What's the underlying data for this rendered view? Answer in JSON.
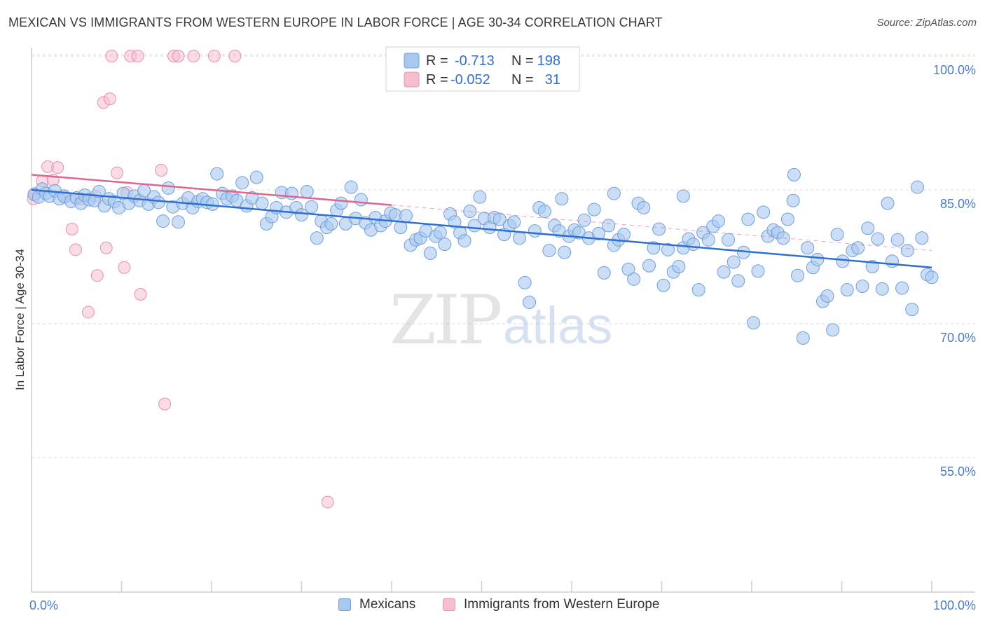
{
  "header": {
    "title": "MEXICAN VS IMMIGRANTS FROM WESTERN EUROPE IN LABOR FORCE | AGE 30-34 CORRELATION CHART",
    "source": "Source: ZipAtlas.com"
  },
  "watermark": {
    "zip": "ZIP",
    "atlas": "atlas"
  },
  "colors": {
    "blue_fill": "#a9c8f0",
    "blue_stroke": "#6d9fdb",
    "blue_line": "#2f6fd0",
    "pink_fill": "#f6bfd0",
    "pink_stroke": "#e990ab",
    "pink_line": "#e06690",
    "grid": "#d9d9d9",
    "axis_text": "#4a7cc7"
  },
  "legend_top": {
    "rows": [
      {
        "r_label": "R =",
        "r_value": "-0.713",
        "n_label": "N =",
        "n_value": "198",
        "series": "blue"
      },
      {
        "r_label": "R =",
        "r_value": "-0.052",
        "n_label": "N =",
        "n_value": "31",
        "series": "pink"
      }
    ]
  },
  "legend_bottom": [
    {
      "label": "Mexicans",
      "series": "blue"
    },
    {
      "label": "Immigrants from Western Europe",
      "series": "pink"
    }
  ],
  "chart_data": {
    "type": "scatter",
    "title": "MEXICAN VS IMMIGRANTS FROM WESTERN EUROPE IN LABOR FORCE | AGE 30-34 CORRELATION CHART",
    "xlabel": "",
    "ylabel": "In Labor Force | Age 30-34",
    "xlim": [
      0,
      100
    ],
    "ylim": [
      40,
      102
    ],
    "x_tick_labels": [
      "0.0%",
      "100.0%"
    ],
    "y_ticks": [
      55,
      70,
      85,
      100
    ],
    "y_tick_labels": [
      "55.0%",
      "70.0%",
      "85.0%",
      "100.0%"
    ],
    "grid": true,
    "legend_position": "top-center",
    "series": [
      {
        "name": "Mexicans",
        "r": -0.713,
        "n": 198,
        "trend": {
          "x": [
            0,
            100
          ],
          "y": [
            85.0,
            76.3
          ]
        },
        "points": [
          [
            0.3,
            84.5
          ],
          [
            0.8,
            84.2
          ],
          [
            1.2,
            85.1
          ],
          [
            1.6,
            84.6
          ],
          [
            2.0,
            84.3
          ],
          [
            2.6,
            84.9
          ],
          [
            3.1,
            84.0
          ],
          [
            3.6,
            84.3
          ],
          [
            4.4,
            83.7
          ],
          [
            5.0,
            84.1
          ],
          [
            5.5,
            83.5
          ],
          [
            5.9,
            84.4
          ],
          [
            6.4,
            83.9
          ],
          [
            7.0,
            83.8
          ],
          [
            7.5,
            84.8
          ],
          [
            8.1,
            83.2
          ],
          [
            8.6,
            84.0
          ],
          [
            9.2,
            83.7
          ],
          [
            9.7,
            83.0
          ],
          [
            10.2,
            84.6
          ],
          [
            10.8,
            83.5
          ],
          [
            11.4,
            84.3
          ],
          [
            12.0,
            83.8
          ],
          [
            12.5,
            84.9
          ],
          [
            13.0,
            83.4
          ],
          [
            13.6,
            84.2
          ],
          [
            14.1,
            83.6
          ],
          [
            14.6,
            81.5
          ],
          [
            15.2,
            85.2
          ],
          [
            15.7,
            83.1
          ],
          [
            16.3,
            81.4
          ],
          [
            16.8,
            83.5
          ],
          [
            17.4,
            84.1
          ],
          [
            17.9,
            83.0
          ],
          [
            18.5,
            83.7
          ],
          [
            19.0,
            84.0
          ],
          [
            19.5,
            83.6
          ],
          [
            20.1,
            83.4
          ],
          [
            20.6,
            86.8
          ],
          [
            21.2,
            84.6
          ],
          [
            21.7,
            84.0
          ],
          [
            22.3,
            84.3
          ],
          [
            22.8,
            83.8
          ],
          [
            23.4,
            85.8
          ],
          [
            23.9,
            83.2
          ],
          [
            24.5,
            84.1
          ],
          [
            25.0,
            86.4
          ],
          [
            25.6,
            83.5
          ],
          [
            26.1,
            81.2
          ],
          [
            26.7,
            82.0
          ],
          [
            27.2,
            83.0
          ],
          [
            27.8,
            84.7
          ],
          [
            28.3,
            82.5
          ],
          [
            28.9,
            84.6
          ],
          [
            29.4,
            83.0
          ],
          [
            30.0,
            82.2
          ],
          [
            30.6,
            84.8
          ],
          [
            31.1,
            83.1
          ],
          [
            31.7,
            79.6
          ],
          [
            32.2,
            81.5
          ],
          [
            32.8,
            80.8
          ],
          [
            33.3,
            81.2
          ],
          [
            33.9,
            82.7
          ],
          [
            34.4,
            83.5
          ],
          [
            34.9,
            81.2
          ],
          [
            35.5,
            85.3
          ],
          [
            36.0,
            81.8
          ],
          [
            36.6,
            83.9
          ],
          [
            37.1,
            81.3
          ],
          [
            37.7,
            80.5
          ],
          [
            38.2,
            81.9
          ],
          [
            38.8,
            81.0
          ],
          [
            39.3,
            81.5
          ],
          [
            39.9,
            82.4
          ],
          [
            40.4,
            82.2
          ],
          [
            41.0,
            80.8
          ],
          [
            41.6,
            82.1
          ],
          [
            42.1,
            78.8
          ],
          [
            42.7,
            79.4
          ],
          [
            43.2,
            79.6
          ],
          [
            43.8,
            80.4
          ],
          [
            44.3,
            77.9
          ],
          [
            44.9,
            79.8
          ],
          [
            45.4,
            80.2
          ],
          [
            45.9,
            78.9
          ],
          [
            46.5,
            82.3
          ],
          [
            47.0,
            81.4
          ],
          [
            47.6,
            80.2
          ],
          [
            48.1,
            79.3
          ],
          [
            48.7,
            82.6
          ],
          [
            49.2,
            81.0
          ],
          [
            49.8,
            84.2
          ],
          [
            50.3,
            81.8
          ],
          [
            50.9,
            80.8
          ],
          [
            51.4,
            81.9
          ],
          [
            52.0,
            81.7
          ],
          [
            52.5,
            80.0
          ],
          [
            53.1,
            81.0
          ],
          [
            53.6,
            81.4
          ],
          [
            54.2,
            79.6
          ],
          [
            54.8,
            74.6
          ],
          [
            55.3,
            72.4
          ],
          [
            55.9,
            80.4
          ],
          [
            56.4,
            83.0
          ],
          [
            57.0,
            82.6
          ],
          [
            57.5,
            78.2
          ],
          [
            58.1,
            81.0
          ],
          [
            58.6,
            80.4
          ],
          [
            59.2,
            78.0
          ],
          [
            59.7,
            79.8
          ],
          [
            60.3,
            80.5
          ],
          [
            60.8,
            80.2
          ],
          [
            61.4,
            81.6
          ],
          [
            61.9,
            79.6
          ],
          [
            62.5,
            82.8
          ],
          [
            63.0,
            80.1
          ],
          [
            63.6,
            75.7
          ],
          [
            64.1,
            81.0
          ],
          [
            64.7,
            78.8
          ],
          [
            65.2,
            79.4
          ],
          [
            65.8,
            80.0
          ],
          [
            66.3,
            76.1
          ],
          [
            66.9,
            75.0
          ],
          [
            67.4,
            83.5
          ],
          [
            68.0,
            83.0
          ],
          [
            68.6,
            76.5
          ],
          [
            69.1,
            78.5
          ],
          [
            69.7,
            80.6
          ],
          [
            70.2,
            74.3
          ],
          [
            70.7,
            78.3
          ],
          [
            71.3,
            75.8
          ],
          [
            71.9,
            76.4
          ],
          [
            72.4,
            78.5
          ],
          [
            73.0,
            79.5
          ],
          [
            73.5,
            78.9
          ],
          [
            74.1,
            73.8
          ],
          [
            74.6,
            80.2
          ],
          [
            75.2,
            79.4
          ],
          [
            75.7,
            80.9
          ],
          [
            76.3,
            81.5
          ],
          [
            76.9,
            75.8
          ],
          [
            77.4,
            79.4
          ],
          [
            78.0,
            76.9
          ],
          [
            78.5,
            74.8
          ],
          [
            79.1,
            78.0
          ],
          [
            79.6,
            81.7
          ],
          [
            80.2,
            70.1
          ],
          [
            80.7,
            75.9
          ],
          [
            81.3,
            82.5
          ],
          [
            81.8,
            79.8
          ],
          [
            82.4,
            80.5
          ],
          [
            82.9,
            80.2
          ],
          [
            83.5,
            79.6
          ],
          [
            84.0,
            81.7
          ],
          [
            84.6,
            83.8
          ],
          [
            85.1,
            75.4
          ],
          [
            85.7,
            68.4
          ],
          [
            86.2,
            78.5
          ],
          [
            86.8,
            76.3
          ],
          [
            87.3,
            77.2
          ],
          [
            87.9,
            72.5
          ],
          [
            88.4,
            73.1
          ],
          [
            89.0,
            69.3
          ],
          [
            89.5,
            80.0
          ],
          [
            90.1,
            77.0
          ],
          [
            90.6,
            73.8
          ],
          [
            91.2,
            78.2
          ],
          [
            91.8,
            78.5
          ],
          [
            92.3,
            74.2
          ],
          [
            92.9,
            80.7
          ],
          [
            93.4,
            76.4
          ],
          [
            94.0,
            79.5
          ],
          [
            94.5,
            73.9
          ],
          [
            95.1,
            83.5
          ],
          [
            95.6,
            77.0
          ],
          [
            96.2,
            79.4
          ],
          [
            96.7,
            74.0
          ],
          [
            97.3,
            78.2
          ],
          [
            97.8,
            71.6
          ],
          [
            98.4,
            85.3
          ],
          [
            98.9,
            79.6
          ],
          [
            99.5,
            75.5
          ],
          [
            100.0,
            75.2
          ],
          [
            58.9,
            84.0
          ],
          [
            64.7,
            84.6
          ],
          [
            84.7,
            86.7
          ],
          [
            72.4,
            84.3
          ]
        ]
      },
      {
        "name": "Immigrants from Western Europe",
        "r": -0.052,
        "n": 31,
        "trend": {
          "x": [
            0,
            40
          ],
          "y": [
            86.7,
            83.3
          ]
        },
        "trend_dashed": {
          "x": [
            40,
            100
          ],
          "y": [
            83.3,
            78.2
          ]
        },
        "points": [
          [
            0.4,
            84.6
          ],
          [
            1.2,
            86.0
          ],
          [
            1.8,
            87.6
          ],
          [
            2.4,
            86.1
          ],
          [
            2.9,
            87.5
          ],
          [
            3.8,
            84.2
          ],
          [
            4.5,
            80.6
          ],
          [
            4.9,
            78.3
          ],
          [
            5.5,
            84.0
          ],
          [
            6.3,
            71.3
          ],
          [
            7.1,
            84.3
          ],
          [
            7.3,
            75.4
          ],
          [
            8.0,
            94.8
          ],
          [
            8.3,
            78.5
          ],
          [
            8.7,
            95.2
          ],
          [
            8.9,
            100.0
          ],
          [
            9.5,
            86.9
          ],
          [
            10.3,
            76.3
          ],
          [
            10.6,
            84.7
          ],
          [
            11.0,
            100.0
          ],
          [
            11.8,
            100.0
          ],
          [
            12.1,
            73.3
          ],
          [
            14.4,
            87.2
          ],
          [
            14.8,
            61.0
          ],
          [
            15.8,
            100.0
          ],
          [
            16.3,
            100.0
          ],
          [
            18.0,
            100.0
          ],
          [
            20.3,
            100.0
          ],
          [
            22.6,
            100.0
          ],
          [
            32.9,
            50.0
          ],
          [
            0.2,
            84.0
          ]
        ]
      }
    ]
  }
}
